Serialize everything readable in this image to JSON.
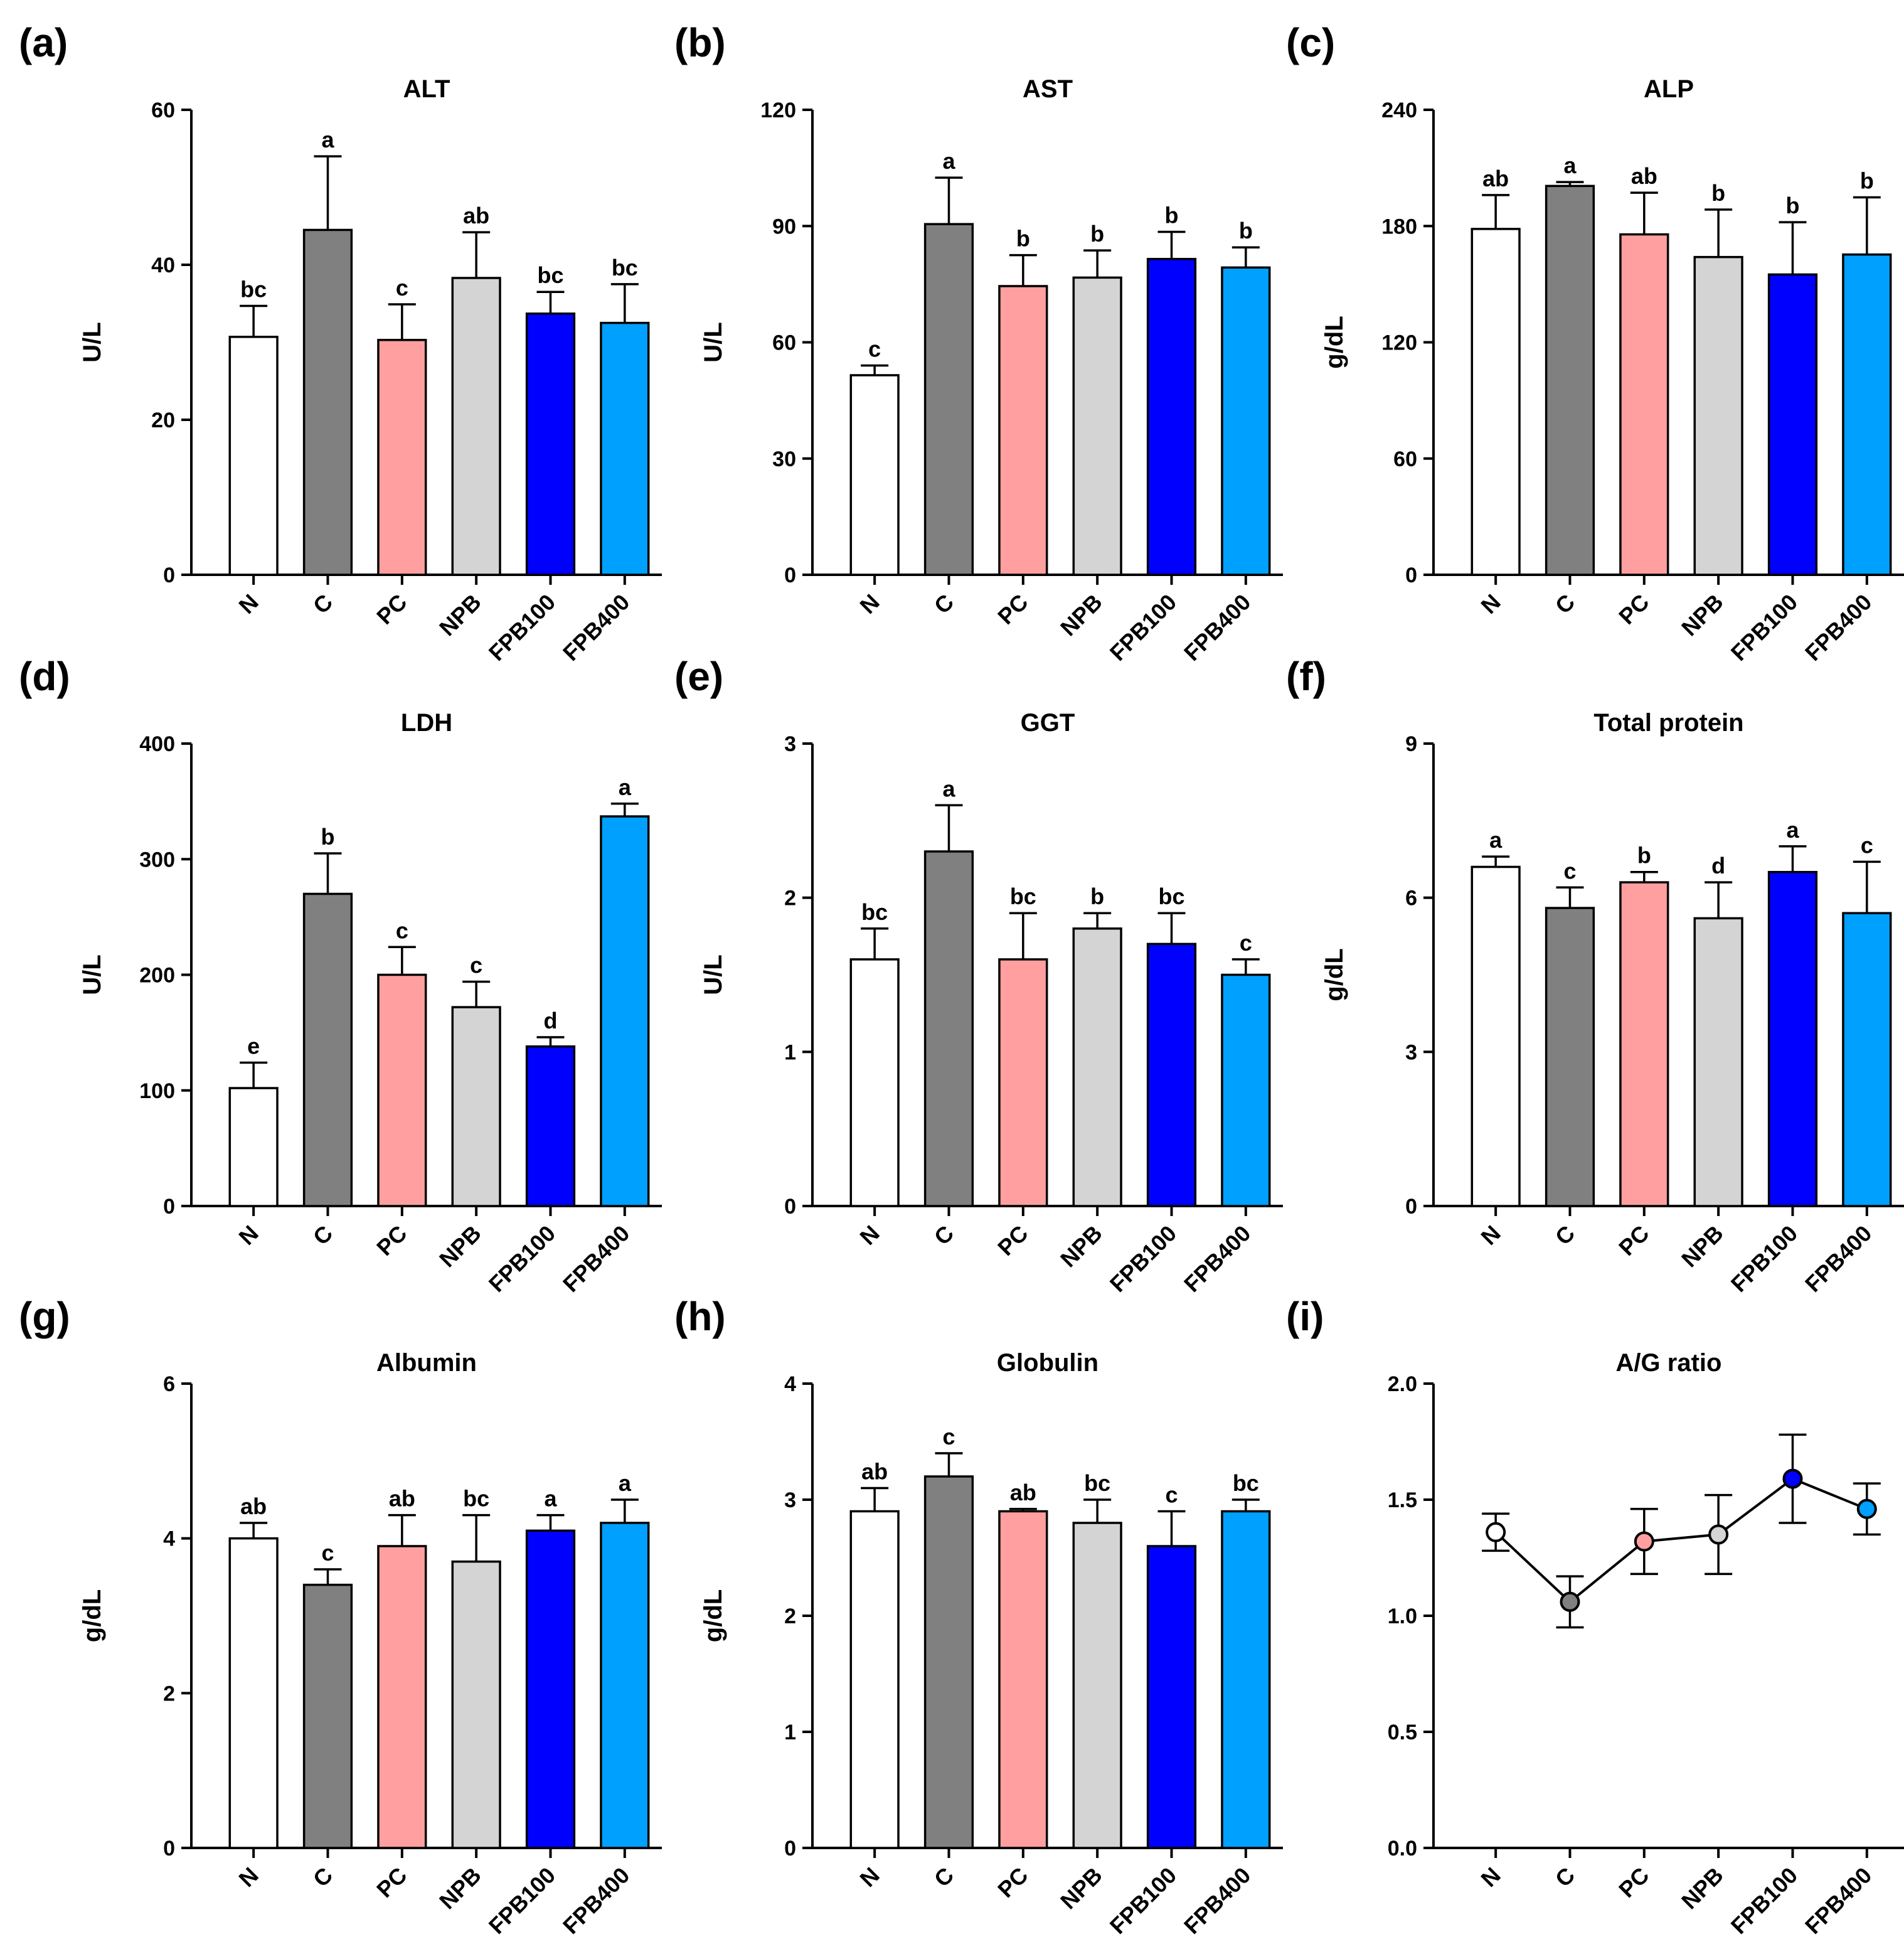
{
  "figure": {
    "categories": [
      "N",
      "C",
      "PC",
      "NPB",
      "FPB100",
      "FPB400"
    ],
    "group_colors": [
      "#ffffff",
      "#808080",
      "#ff9f9f",
      "#d4d4d4",
      "#0000ff",
      "#00a0ff"
    ],
    "line_color": "#000000"
  },
  "chart_data": [
    {
      "panel": "(a)",
      "type": "bar",
      "title": "ALT",
      "ylabel": "U/L",
      "ylim": [
        0,
        60
      ],
      "yticks": [
        0,
        20,
        40,
        60
      ],
      "values": [
        30.7,
        44.5,
        30.3,
        38.3,
        33.7,
        32.5
      ],
      "errors": [
        4.0,
        9.5,
        4.6,
        5.9,
        2.8,
        5.0
      ],
      "letters": [
        "bc",
        "a",
        "c",
        "ab",
        "bc",
        "bc"
      ]
    },
    {
      "panel": "(b)",
      "type": "bar",
      "title": "AST",
      "ylabel": "U/L",
      "ylim": [
        0,
        120
      ],
      "yticks": [
        0,
        30,
        60,
        90,
        120
      ],
      "values": [
        51.5,
        90.5,
        74.5,
        76.7,
        81.5,
        79.3
      ],
      "errors": [
        2.5,
        12.0,
        8.0,
        7.0,
        7.0,
        5.2
      ],
      "letters": [
        "c",
        "a",
        "b",
        "b",
        "b",
        "b"
      ]
    },
    {
      "panel": "(c)",
      "type": "bar",
      "title": "ALP",
      "ylabel": "g/dL",
      "ylim": [
        0,
        240
      ],
      "yticks": [
        0,
        60,
        120,
        180,
        240
      ],
      "values": [
        178.5,
        200.7,
        175.7,
        164.0,
        155.0,
        165.3
      ],
      "errors": [
        17.5,
        2.0,
        21.5,
        24.5,
        27.0,
        29.5
      ],
      "letters": [
        "ab",
        "a",
        "ab",
        "b",
        "b",
        "b"
      ]
    },
    {
      "panel": "(d)",
      "type": "bar",
      "title": "LDH",
      "ylabel": "U/L",
      "ylim": [
        0,
        400
      ],
      "yticks": [
        0,
        100,
        200,
        300,
        400
      ],
      "values": [
        102,
        270,
        200,
        172,
        138,
        337
      ],
      "errors": [
        22,
        35,
        24,
        22,
        8,
        11
      ],
      "letters": [
        "e",
        "b",
        "c",
        "c",
        "d",
        "a"
      ]
    },
    {
      "panel": "(e)",
      "type": "bar",
      "title": "GGT",
      "ylabel": "U/L",
      "ylim": [
        0,
        3
      ],
      "yticks": [
        0,
        1,
        2,
        3
      ],
      "values": [
        1.6,
        2.3,
        1.6,
        1.8,
        1.7,
        1.5
      ],
      "errors": [
        0.2,
        0.3,
        0.3,
        0.1,
        0.2,
        0.1
      ],
      "letters": [
        "bc",
        "a",
        "bc",
        "b",
        "bc",
        "c"
      ]
    },
    {
      "panel": "(f)",
      "type": "bar",
      "title": "Total protein",
      "ylabel": "g/dL",
      "ylim": [
        0,
        9
      ],
      "yticks": [
        0,
        3,
        6,
        9
      ],
      "values": [
        6.6,
        5.8,
        6.3,
        5.6,
        6.5,
        5.7
      ],
      "errors": [
        0.2,
        0.4,
        0.2,
        0.7,
        0.5,
        1.0
      ],
      "letters": [
        "a",
        "c",
        "b",
        "d",
        "a",
        "c"
      ]
    },
    {
      "panel": "(g)",
      "type": "bar",
      "title": "Albumin",
      "ylabel": "g/dL",
      "ylim": [
        0,
        6
      ],
      "yticks": [
        0,
        2,
        4,
        6
      ],
      "values": [
        4.0,
        3.4,
        3.9,
        3.7,
        4.1,
        4.2
      ],
      "errors": [
        0.2,
        0.2,
        0.4,
        0.6,
        0.2,
        0.3
      ],
      "letters": [
        "ab",
        "c",
        "ab",
        "bc",
        "a",
        "a"
      ]
    },
    {
      "panel": "(h)",
      "type": "bar",
      "title": "Globulin",
      "ylabel": "g/dL",
      "ylim": [
        0,
        4
      ],
      "yticks": [
        0,
        1,
        2,
        3,
        4
      ],
      "values": [
        2.9,
        3.2,
        2.9,
        2.8,
        2.6,
        2.9
      ],
      "errors": [
        0.2,
        0.2,
        0.02,
        0.2,
        0.3,
        0.1
      ],
      "letters": [
        "ab",
        "c",
        "ab",
        "bc",
        "c",
        "bc"
      ]
    },
    {
      "panel": "(i)",
      "type": "line",
      "title": "A/G ratio",
      "ylabel": "",
      "ylim": [
        0,
        2.0
      ],
      "yticks": [
        0.0,
        0.5,
        1.0,
        1.5,
        2.0
      ],
      "values": [
        1.36,
        1.06,
        1.32,
        1.35,
        1.59,
        1.46
      ],
      "errors": [
        0.08,
        0.11,
        0.14,
        0.17,
        0.19,
        0.11
      ],
      "letters": [
        "",
        "",
        "",
        "",
        "",
        ""
      ]
    }
  ]
}
